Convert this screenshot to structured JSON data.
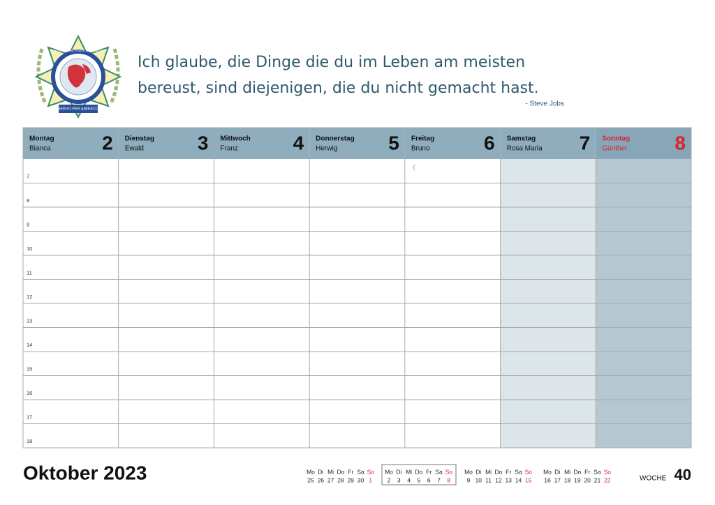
{
  "quote": {
    "lines": [
      "Ich glaube, die Dinge die du im Leben am meisten",
      "bereust, sind diejenigen, die du nicht gemacht hast."
    ],
    "author": "- Steve Jobs"
  },
  "logo": {
    "ring_text": "INTERNATIONAL POLICE ASSOCIATION",
    "motto": "SERVO PER AMIKECO"
  },
  "days": [
    {
      "name": "Montag",
      "number": 2,
      "person": "Bianca"
    },
    {
      "name": "Dienstag",
      "number": 3,
      "person": "Ewald"
    },
    {
      "name": "Mittwoch",
      "number": 4,
      "person": "Franz"
    },
    {
      "name": "Donnerstag",
      "number": 5,
      "person": "Herwig"
    },
    {
      "name": "Freitag",
      "number": 6,
      "person": "Bruno"
    },
    {
      "name": "Samstag",
      "number": 7,
      "person": "Rosa Maria"
    },
    {
      "name": "Sonntag",
      "number": 8,
      "person": "Günther"
    }
  ],
  "hours": [
    7,
    8,
    9,
    10,
    11,
    12,
    13,
    14,
    15,
    16,
    17,
    18
  ],
  "footer": {
    "month": "Oktober 2023",
    "week_label": "WOCHE",
    "week_number": 40,
    "weekdays": [
      "Mo",
      "Di",
      "Mi",
      "Do",
      "Fr",
      "Sa",
      "So"
    ],
    "mini_calendars": [
      {
        "dates": [
          25,
          26,
          27,
          28,
          29,
          30,
          1
        ]
      },
      {
        "dates": [
          2,
          3,
          4,
          5,
          6,
          7,
          8
        ]
      },
      {
        "dates": [
          9,
          10,
          11,
          12,
          13,
          14,
          15
        ]
      },
      {
        "dates": [
          16,
          17,
          18,
          19,
          20,
          21,
          22
        ]
      }
    ]
  }
}
